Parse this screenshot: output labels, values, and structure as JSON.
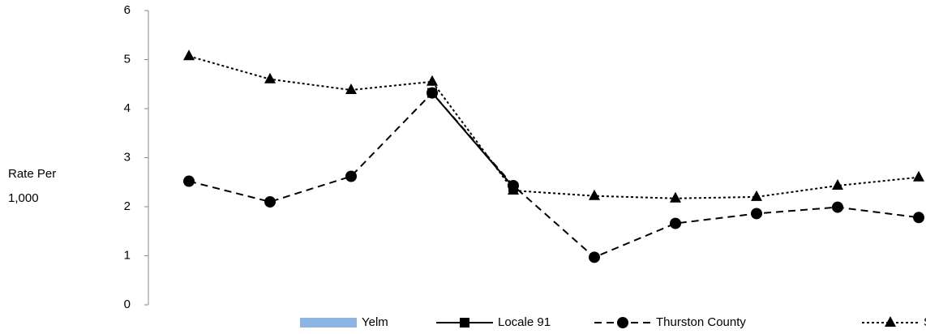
{
  "chart_data": {
    "type": "line",
    "y_label": "Rate Per 1,000",
    "categories": [
      null,
      null,
      null,
      null,
      null,
      null,
      null,
      null,
      null,
      null
    ],
    "series": [
      {
        "name": "Yelm",
        "type": "bar",
        "color": "#8db4e2",
        "values": [
          null,
          null,
          null,
          null,
          null,
          null,
          null,
          null,
          null,
          null
        ]
      },
      {
        "name": "Locale 91",
        "color": "#000000",
        "style": "solid",
        "marker": "square",
        "values": [
          null,
          null,
          null,
          4.32,
          2.4,
          null,
          null,
          null,
          null,
          null
        ]
      },
      {
        "name": "Thurston County",
        "color": "#000000",
        "style": "dashed",
        "marker": "circle",
        "values": [
          2.52,
          2.1,
          2.62,
          4.32,
          2.43,
          0.97,
          1.66,
          1.86,
          1.99,
          1.78
        ]
      },
      {
        "name": "State",
        "color": "#000000",
        "style": "dotted",
        "marker": "triangle",
        "values": [
          5.07,
          4.6,
          4.38,
          4.55,
          2.33,
          2.22,
          2.17,
          2.2,
          2.43,
          2.6
        ]
      }
    ],
    "ylim": [
      0,
      6
    ],
    "yticks": [
      0,
      1,
      2,
      3,
      4,
      5,
      6
    ],
    "grid": false,
    "legend": "bottom"
  }
}
